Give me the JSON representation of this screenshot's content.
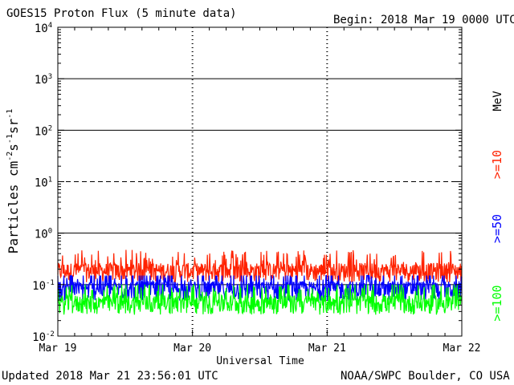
{
  "header": {
    "title": "GOES15 Proton Flux (5 minute data)",
    "begin": "Begin: 2018 Mar 19 0000 UTC"
  },
  "footer": {
    "updated": "Updated 2018 Mar 21 23:56:01 UTC",
    "credit": "NOAA/SWPC Boulder, CO USA"
  },
  "chart_data": {
    "type": "line",
    "title": "GOES15 Proton Flux (5 minute data)",
    "xlabel": "Universal Time",
    "ylabel": "Particles cm⁻²s⁻¹sr⁻¹",
    "y_scale": "log",
    "ylim": [
      0.01,
      10000
    ],
    "yticks": [
      {
        "value": 0.01,
        "base": "10",
        "exp": "-2"
      },
      {
        "value": 0.1,
        "base": "10",
        "exp": "-1"
      },
      {
        "value": 1,
        "base": "10",
        "exp": "0"
      },
      {
        "value": 10,
        "base": "10",
        "exp": "1"
      },
      {
        "value": 100,
        "base": "10",
        "exp": "2"
      },
      {
        "value": 1000,
        "base": "10",
        "exp": "3"
      },
      {
        "value": 10000,
        "base": "10",
        "exp": "4"
      }
    ],
    "xlim": [
      "2018-03-19",
      "2018-03-22"
    ],
    "xticks": [
      "Mar 19",
      "Mar 20",
      "Mar 21",
      "Mar 22"
    ],
    "grid": true,
    "threshold_line": {
      "value": 10,
      "style": "dashed"
    },
    "units_label": "MeV",
    "series": [
      {
        "name": ">=10",
        "color": "#ff2200",
        "baseline": 0.17,
        "min": 0.1,
        "max": 0.5
      },
      {
        "name": ">=50",
        "color": "#0000ff",
        "baseline": 0.075,
        "min": 0.045,
        "max": 0.15
      },
      {
        "name": ">=100",
        "color": "#00ff00",
        "baseline": 0.04,
        "min": 0.025,
        "max": 0.1
      }
    ]
  }
}
